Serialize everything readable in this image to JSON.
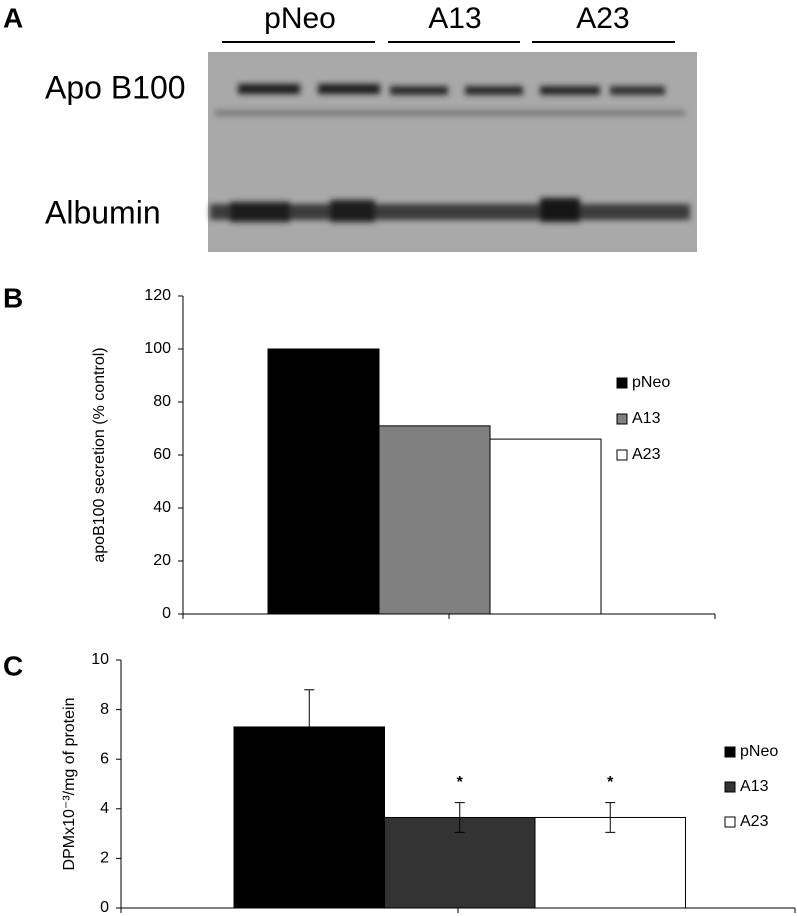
{
  "panel_a": {
    "label": "A",
    "lanes": [
      "pNeo",
      "A13",
      "A23"
    ],
    "rows": [
      "Apo B100",
      "Albumin"
    ]
  },
  "chart_data": [
    {
      "type": "bar",
      "panel": "B",
      "y_label": "apoB100 secretion (% control)",
      "categories": [
        null
      ],
      "series": [
        {
          "name": "pNeo",
          "color": "#000000",
          "values": [
            100
          ]
        },
        {
          "name": "A13",
          "color": "#808080",
          "values": [
            71
          ]
        },
        {
          "name": "A23",
          "color": "#ffffff",
          "values": [
            66
          ]
        }
      ],
      "ylim": [
        0,
        120
      ],
      "yticks": [
        0,
        20,
        40,
        60,
        80,
        100,
        120
      ],
      "legend": "right"
    },
    {
      "type": "bar",
      "panel": "C",
      "y_label": "DPMx10⁻³/mg of protein",
      "categories": [
        null
      ],
      "series": [
        {
          "name": "pNeo",
          "color": "#000000",
          "values": [
            7.3
          ],
          "errors": [
            1.5
          ]
        },
        {
          "name": "A13",
          "color": "#333333",
          "values": [
            3.65
          ],
          "errors": [
            0.6
          ],
          "significance": "*"
        },
        {
          "name": "A23",
          "color": "#ffffff",
          "values": [
            3.65
          ],
          "errors": [
            0.6
          ],
          "significance": "*"
        }
      ],
      "ylim": [
        0,
        10
      ],
      "yticks": [
        0,
        2,
        4,
        6,
        8,
        10
      ],
      "legend": "right"
    }
  ]
}
